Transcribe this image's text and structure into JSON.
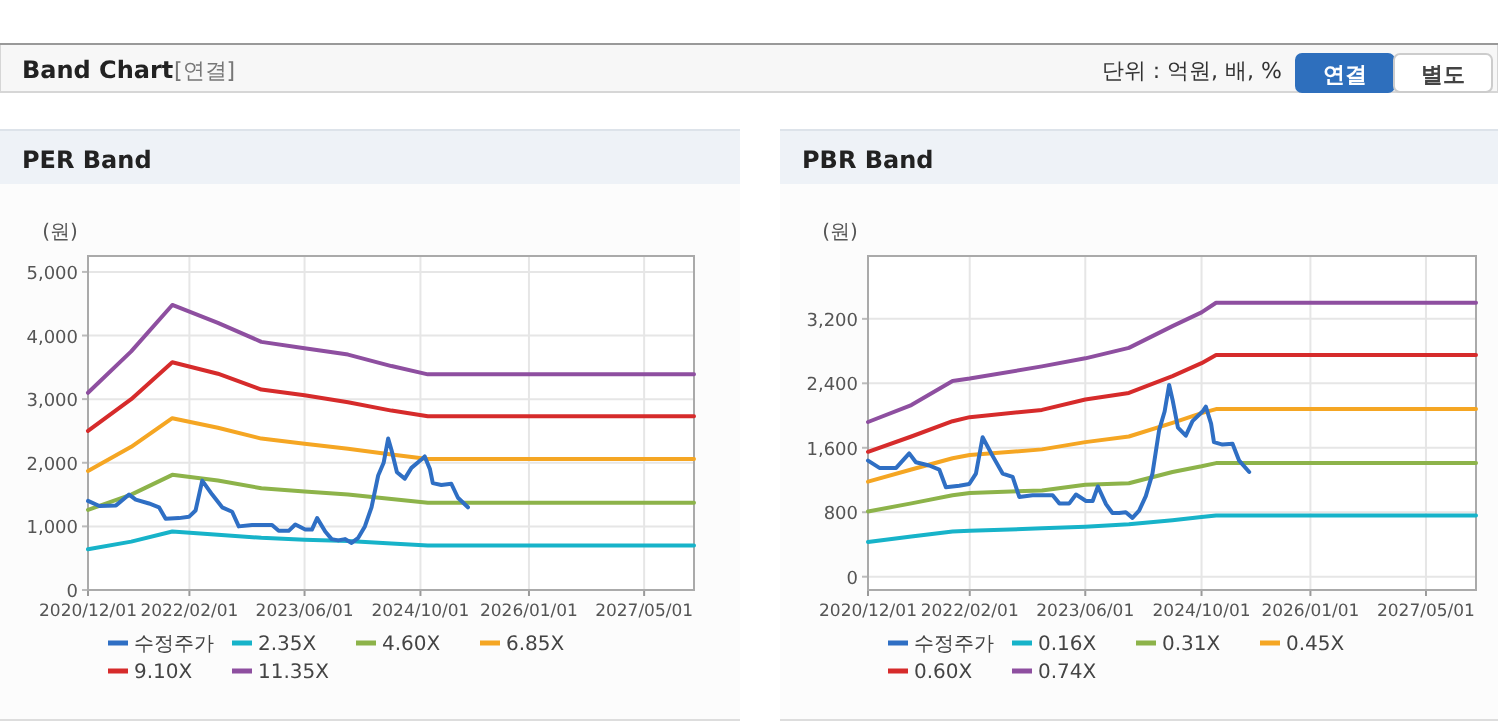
{
  "chart_data": [
    {
      "type": "other",
      "title": "Band Chart",
      "subtitle": "[연결]",
      "annotations": [
        "단위 : 억원, 배, %",
        "연결",
        "별도"
      ]
    },
    {
      "type": "line",
      "title": "PER Band",
      "ylabel": "(원)",
      "grid": true,
      "legend": "bottom",
      "xlim": [
        "2020-12-01",
        "2027-11-27"
      ],
      "ylim": [
        0,
        5250
      ],
      "yticks": [
        {
          "value": 0,
          "label": "0"
        },
        {
          "value": 1000,
          "label": "1,000"
        },
        {
          "value": 2000,
          "label": "2,000"
        },
        {
          "value": 3000,
          "label": "3,000"
        },
        {
          "value": 4000,
          "label": "4,000"
        },
        {
          "value": 5000,
          "label": "5,000"
        }
      ],
      "xticks": [
        {
          "value": "2020-12-01",
          "label": "2020/12/01"
        },
        {
          "value": "2022-02-01",
          "label": "2022/02/01"
        },
        {
          "value": "2023-06-01",
          "label": "2023/06/01"
        },
        {
          "value": "2024-10-01",
          "label": "2024/10/01"
        },
        {
          "value": "2026-01-01",
          "label": "2026/01/01"
        },
        {
          "value": "2027-05-01",
          "label": "2027/05/01"
        }
      ],
      "series": [
        {
          "name": "수정주가",
          "color": "#2f6fc4",
          "x": [
            "2020-12-01",
            "2021-01-18",
            "2021-03-29",
            "2021-05-23",
            "2021-06-20",
            "2021-08-15",
            "2021-09-26",
            "2021-10-24",
            "2021-12-19",
            "2022-01-30",
            "2022-02-27",
            "2022-03-27",
            "2022-05-08",
            "2022-06-19",
            "2022-07-31",
            "2022-08-28",
            "2022-10-23",
            "2023-01-15",
            "2023-02-12",
            "2023-03-26",
            "2023-04-23",
            "2023-06-04",
            "2023-07-02",
            "2023-07-24",
            "2023-08-27",
            "2023-09-23",
            "2023-10-21",
            "2023-11-18",
            "2023-12-16",
            "2024-01-13",
            "2024-02-10",
            "2024-03-09",
            "2024-04-06",
            "2024-04-29",
            "2024-05-18",
            "2024-06-01",
            "2024-06-24",
            "2024-07-27",
            "2024-08-24",
            "2024-10-05",
            "2024-10-19",
            "2024-11-10",
            "2024-11-22",
            "2024-12-28",
            "2025-02-08",
            "2025-03-08",
            "2025-04-19"
          ],
          "values": [
            1400,
            1320,
            1330,
            1500,
            1420,
            1360,
            1300,
            1120,
            1130,
            1150,
            1250,
            1720,
            1500,
            1300,
            1230,
            1000,
            1020,
            1020,
            930,
            930,
            1030,
            950,
            950,
            1130,
            920,
            800,
            780,
            800,
            740,
            820,
            1000,
            1300,
            1800,
            2000,
            2380,
            2200,
            1850,
            1750,
            1920,
            2050,
            2100,
            1900,
            1680,
            1650,
            1670,
            1450,
            1300
          ]
        },
        {
          "name": "2.35X",
          "color": "#17b3c9",
          "x": [
            "2020-12-01",
            "2021-06-01",
            "2021-11-21",
            "2022-06-01",
            "2022-12-01",
            "2023-06-01",
            "2023-12-01",
            "2024-06-01",
            "2024-11-01",
            "2027-11-27"
          ],
          "values": [
            640,
            760,
            920,
            870,
            820,
            790,
            770,
            730,
            700,
            700
          ]
        },
        {
          "name": "4.60X",
          "color": "#8db34a",
          "x": [
            "2020-12-01",
            "2021-06-01",
            "2021-11-21",
            "2022-06-01",
            "2022-12-01",
            "2023-06-01",
            "2023-12-01",
            "2024-06-01",
            "2024-11-01",
            "2027-11-27"
          ],
          "values": [
            1260,
            1500,
            1810,
            1720,
            1600,
            1550,
            1500,
            1430,
            1370,
            1370
          ]
        },
        {
          "name": "6.85X",
          "color": "#f5a623",
          "x": [
            "2020-12-01",
            "2021-06-01",
            "2021-11-21",
            "2022-06-01",
            "2022-12-01",
            "2023-06-01",
            "2023-12-01",
            "2024-06-01",
            "2024-11-01",
            "2027-11-27"
          ],
          "values": [
            1870,
            2250,
            2700,
            2550,
            2380,
            2300,
            2220,
            2130,
            2060,
            2060
          ]
        },
        {
          "name": "9.10X",
          "color": "#d62b2b",
          "x": [
            "2020-12-01",
            "2021-06-01",
            "2021-11-21",
            "2022-06-01",
            "2022-12-01",
            "2023-06-01",
            "2023-12-01",
            "2024-06-01",
            "2024-11-01",
            "2027-11-27"
          ],
          "values": [
            2500,
            3000,
            3580,
            3400,
            3150,
            3060,
            2950,
            2820,
            2730,
            2730
          ]
        },
        {
          "name": "11.35X",
          "color": "#8e4fa0",
          "x": [
            "2020-12-01",
            "2021-06-01",
            "2021-11-21",
            "2022-06-01",
            "2022-12-01",
            "2023-06-01",
            "2023-12-01",
            "2024-06-01",
            "2024-11-01",
            "2027-11-27"
          ],
          "values": [
            3100,
            3750,
            4480,
            4200,
            3900,
            3800,
            3700,
            3520,
            3390,
            3390
          ]
        }
      ]
    },
    {
      "type": "line",
      "title": "PBR Band",
      "ylabel": "(원)",
      "grid": true,
      "legend": "bottom",
      "xlim": [
        "2020-12-01",
        "2027-11-27"
      ],
      "ylim": [
        -165,
        3980
      ],
      "yticks": [
        {
          "value": 0,
          "label": "0"
        },
        {
          "value": 800,
          "label": "800"
        },
        {
          "value": 1600,
          "label": "1,600"
        },
        {
          "value": 2400,
          "label": "2,400"
        },
        {
          "value": 3200,
          "label": "3,200"
        }
      ],
      "xticks": [
        {
          "value": "2020-12-01",
          "label": "2020/12/01"
        },
        {
          "value": "2022-02-01",
          "label": "2022/02/01"
        },
        {
          "value": "2023-06-01",
          "label": "2023/06/01"
        },
        {
          "value": "2024-10-01",
          "label": "2024/10/01"
        },
        {
          "value": "2026-01-01",
          "label": "2026/01/01"
        },
        {
          "value": "2027-05-01",
          "label": "2027/05/01"
        }
      ],
      "series": [
        {
          "name": "수정주가",
          "color": "#2f6fc4",
          "x": [
            "2020-12-01",
            "2021-01-18",
            "2021-03-29",
            "2021-05-23",
            "2021-06-20",
            "2021-08-15",
            "2021-09-26",
            "2021-10-24",
            "2021-12-19",
            "2022-01-30",
            "2022-02-27",
            "2022-03-27",
            "2022-05-08",
            "2022-06-19",
            "2022-07-31",
            "2022-08-28",
            "2022-10-23",
            "2023-01-15",
            "2023-02-12",
            "2023-03-26",
            "2023-04-23",
            "2023-06-04",
            "2023-07-02",
            "2023-07-24",
            "2023-08-27",
            "2023-09-23",
            "2023-10-21",
            "2023-11-18",
            "2023-12-16",
            "2024-01-13",
            "2024-02-10",
            "2024-03-09",
            "2024-04-06",
            "2024-04-29",
            "2024-05-18",
            "2024-06-01",
            "2024-06-24",
            "2024-07-27",
            "2024-08-24",
            "2024-10-05",
            "2024-10-19",
            "2024-11-10",
            "2024-11-22",
            "2024-12-28",
            "2025-02-08",
            "2025-03-08",
            "2025-04-19"
          ],
          "values": [
            1440,
            1350,
            1350,
            1530,
            1420,
            1380,
            1330,
            1110,
            1130,
            1150,
            1280,
            1730,
            1500,
            1280,
            1240,
            990,
            1010,
            1010,
            910,
            910,
            1020,
            940,
            940,
            1120,
            900,
            790,
            790,
            800,
            730,
            820,
            1000,
            1280,
            1820,
            2050,
            2380,
            2200,
            1850,
            1750,
            1930,
            2050,
            2110,
            1900,
            1670,
            1640,
            1650,
            1440,
            1300
          ]
        },
        {
          "name": "0.16X",
          "color": "#17b3c9",
          "x": [
            "2020-12-01",
            "2021-06-01",
            "2021-11-21",
            "2022-02-01",
            "2022-12-01",
            "2023-06-01",
            "2023-12-01",
            "2024-06-01",
            "2024-10-01",
            "2024-12-01",
            "2027-11-27"
          ],
          "values": [
            430,
            500,
            560,
            570,
            600,
            620,
            650,
            700,
            740,
            760,
            760
          ]
        },
        {
          "name": "0.31X",
          "color": "#8db34a",
          "x": [
            "2020-12-01",
            "2021-06-01",
            "2021-11-21",
            "2022-02-01",
            "2022-12-01",
            "2023-06-01",
            "2023-12-01",
            "2024-06-01",
            "2024-10-01",
            "2024-12-01",
            "2027-11-27"
          ],
          "values": [
            810,
            910,
            1010,
            1040,
            1070,
            1140,
            1160,
            1300,
            1370,
            1410,
            1410
          ]
        },
        {
          "name": "0.45X",
          "color": "#f5a623",
          "x": [
            "2020-12-01",
            "2021-06-01",
            "2021-11-21",
            "2022-02-01",
            "2022-12-01",
            "2023-06-01",
            "2023-12-01",
            "2024-06-01",
            "2024-10-01",
            "2024-12-01",
            "2027-11-27"
          ],
          "values": [
            1180,
            1330,
            1470,
            1510,
            1580,
            1670,
            1740,
            1910,
            2030,
            2080,
            2080
          ]
        },
        {
          "name": "0.60X",
          "color": "#d62b2b",
          "x": [
            "2020-12-01",
            "2021-06-01",
            "2021-11-21",
            "2022-02-01",
            "2022-12-01",
            "2023-06-01",
            "2023-12-01",
            "2024-06-01",
            "2024-10-01",
            "2024-12-01",
            "2027-11-27"
          ],
          "values": [
            1550,
            1740,
            1930,
            1980,
            2070,
            2200,
            2280,
            2490,
            2650,
            2750,
            2750
          ]
        },
        {
          "name": "0.74X",
          "color": "#8e4fa0",
          "x": [
            "2020-12-01",
            "2021-06-01",
            "2021-11-21",
            "2022-02-01",
            "2022-12-01",
            "2023-06-01",
            "2023-12-01",
            "2024-06-01",
            "2024-10-01",
            "2024-12-01",
            "2027-11-27"
          ],
          "values": [
            1920,
            2130,
            2430,
            2460,
            2610,
            2710,
            2840,
            3110,
            3280,
            3400,
            3400
          ]
        }
      ]
    }
  ]
}
